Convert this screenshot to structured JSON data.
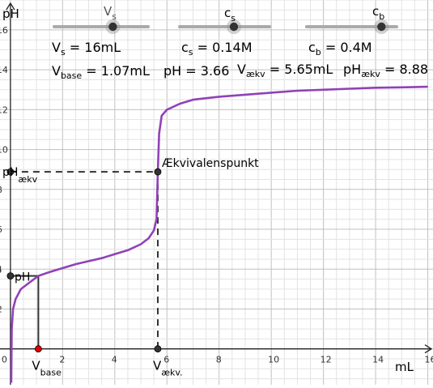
{
  "chart_data": {
    "type": "line",
    "title": "",
    "xlabel": "mL",
    "ylabel": "pH",
    "xlim": [
      -0.4,
      16.2
    ],
    "ylim": [
      -1.8,
      17.5
    ],
    "x_ticks": [
      "0",
      "2",
      "4",
      "6",
      "8",
      "10",
      "12",
      "14",
      "16"
    ],
    "y_ticks": [
      "2",
      "4",
      "6",
      "8",
      "10",
      "12",
      "14",
      "16"
    ],
    "grid": true,
    "series": [
      {
        "x": [
          0.03,
          0.05,
          0.1,
          0.2,
          0.4,
          0.7,
          1.07,
          1.5,
          2.0,
          2.5,
          3.0,
          3.5,
          4.0,
          4.5,
          5.0,
          5.3,
          5.5,
          5.6,
          5.65,
          5.7,
          5.8,
          6.0,
          6.5,
          7.0,
          8.0,
          9.0,
          10.0,
          11.0,
          12.0,
          13.0,
          14.0,
          15.0,
          16.0
        ],
        "y": [
          -1.7,
          1.0,
          2.0,
          2.5,
          3.0,
          3.3,
          3.66,
          3.85,
          4.05,
          4.25,
          4.4,
          4.55,
          4.75,
          4.95,
          5.25,
          5.55,
          5.95,
          6.5,
          8.88,
          10.8,
          11.7,
          12.0,
          12.3,
          12.5,
          12.65,
          12.75,
          12.85,
          12.95,
          13.0,
          13.05,
          13.1,
          13.12,
          13.15
        ],
        "color": "#9041b8"
      }
    ],
    "annotations": {
      "equivalence_label": "Ækvivalenspunkt",
      "v_base": 1.07,
      "ph": 3.66,
      "v_aekv": 5.65,
      "ph_aekv": 8.88
    },
    "axis_labels": {
      "ph_main": "pH",
      "ph_sub": "",
      "ph_aekv_main": "pH",
      "ph_aekv_sub": "ækv",
      "vbase_main": "V",
      "vbase_sub": "base",
      "vaekv_main": "V",
      "vaekv_sub": "ækv."
    }
  },
  "sliders": [
    {
      "main": "V",
      "sub": "s",
      "value_fraction": 0.62
    },
    {
      "main": "c",
      "sub": "s",
      "value_fraction": 0.6
    },
    {
      "main": "c",
      "sub": "b",
      "value_fraction": 0.82
    }
  ],
  "readouts": {
    "vs": {
      "main": "V",
      "sub": "s",
      "value": " = 16mL"
    },
    "cs": {
      "main": "c",
      "sub": "s",
      "value": " = 0.14M"
    },
    "cb": {
      "main": "c",
      "sub": "b",
      "value": " = 0.4M"
    },
    "vbase": {
      "main": "V",
      "sub": "base",
      "value": " = 1.07mL"
    },
    "ph": {
      "main": "pH",
      "value": " = 3.66"
    },
    "vaekv": {
      "main": "V",
      "sub": "ækv",
      "value": " = 5.65mL"
    },
    "phaekv": {
      "main": "pH",
      "sub": "ækv",
      "value": " = 8.88"
    }
  },
  "colors": {
    "curve": "#9041b8",
    "point_black": "#333333",
    "point_red": "#e00000",
    "red_label": "#cc0000",
    "grid_minor": "#e3e3e3",
    "grid_major": "#c0c0c0",
    "slider_track": "#aaaaaa"
  }
}
